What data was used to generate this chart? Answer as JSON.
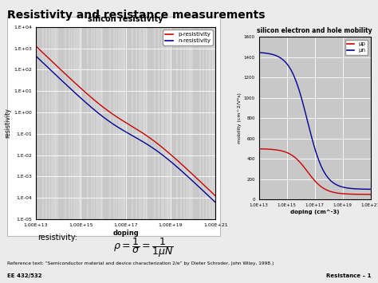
{
  "title": "Resistivity and resistance measurements",
  "bg_color": "#ebebeb",
  "plot1_title": "silicon resistivity",
  "plot1_xlabel": "doping",
  "plot1_ylabel": "resistivity",
  "plot1_xtick_labels": [
    "1.00E+13",
    "1.00E+15",
    "1.00E+17",
    "1.00E+19",
    "1.00E+21"
  ],
  "plot1_ytick_labels": [
    "1.E-05",
    "1.E-04",
    "1.E-03",
    "1.E-02",
    "1.E-01",
    "1.E+00",
    "1.E+01",
    "1.E+02",
    "1.E+03",
    "1.E+04"
  ],
  "plot1_p_color": "#cc0000",
  "plot1_n_color": "#000099",
  "plot1_legend": [
    "p-resistivity",
    "n-resistivity"
  ],
  "plot2_title": "silicon electron and hole mobility",
  "plot2_xlabel": "doping (cm^-3)",
  "plot2_ylabel": "mobility (cm^2/V*s)",
  "plot2_xtick_labels": [
    "1.0E+13",
    "1.0E+15",
    "1.0E+17",
    "1.0E+19",
    "1.0E+21"
  ],
  "plot2_yticks": [
    0,
    200,
    400,
    600,
    800,
    1000,
    1200,
    1400,
    1600
  ],
  "plot2_mup_color": "#cc0000",
  "plot2_mun_color": "#000099",
  "plot2_legend": [
    "μp",
    "μn"
  ],
  "reference_text": "Reference text: “Semiconductor material and device characterization 2/e” by Dieter Schroder, John Wiley, 1998.)",
  "footer_left": "EE 432/532",
  "footer_right": "Resistance – 1"
}
